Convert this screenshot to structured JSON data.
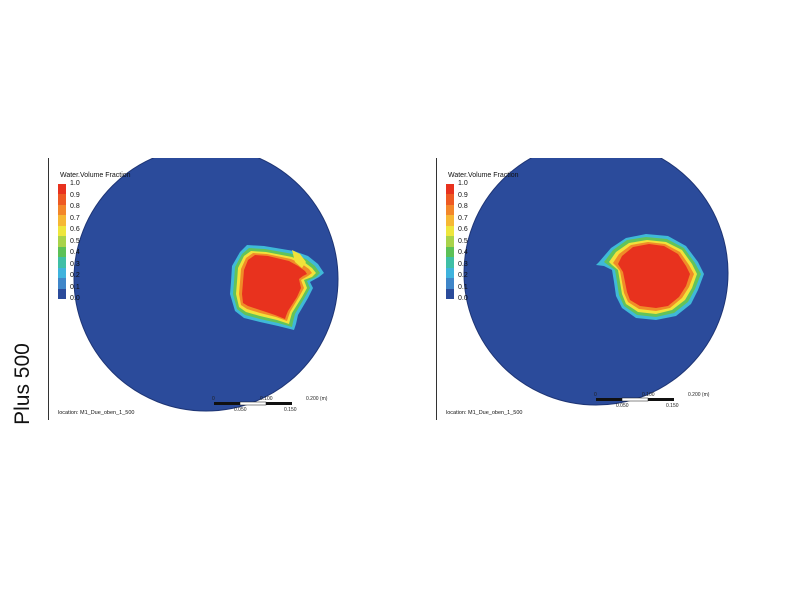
{
  "row_label": "Plus 500",
  "panels": [
    {
      "legend_title": "Water.Volume Fraction",
      "legend_ticks": [
        "1.0",
        "0.9",
        "0.8",
        "0.7",
        "0.6",
        "0.5",
        "0.4",
        "0.3",
        "0.2",
        "0.1",
        "0.0"
      ],
      "location": "location: M1_Due_oben_1_500",
      "scale": {
        "t0": "0",
        "t1": "0.100",
        "t2": "0.200 (m)",
        "b1": "0.050",
        "b2": "0.150"
      }
    },
    {
      "legend_title": "Water.Volume Fraction",
      "legend_ticks": [
        "1.0",
        "0.9",
        "0.8",
        "0.7",
        "0.6",
        "0.5",
        "0.4",
        "0.3",
        "0.2",
        "0.1",
        "0.0"
      ],
      "location": "location: M1_Due_oben_1_500",
      "scale": {
        "t0": "0",
        "t1": "0.100",
        "t2": "0.200 (m)",
        "b1": "0.050",
        "b2": "0.150"
      }
    }
  ],
  "colors": {
    "background_domain": "#2b4b9b",
    "core_red": "#e8321e",
    "ring_orange": "#f08c28",
    "ring_yellow": "#f2e23a",
    "ring_green": "#62c35a",
    "ring_cyan": "#3fb9d8",
    "legend_scale": [
      "#e8321e",
      "#ee5a23",
      "#f3872a",
      "#f6b834",
      "#eee63d",
      "#a9d34a",
      "#5cc157",
      "#3fbfa6",
      "#3fb3dd",
      "#3f86c9",
      "#2b4b9b"
    ]
  }
}
